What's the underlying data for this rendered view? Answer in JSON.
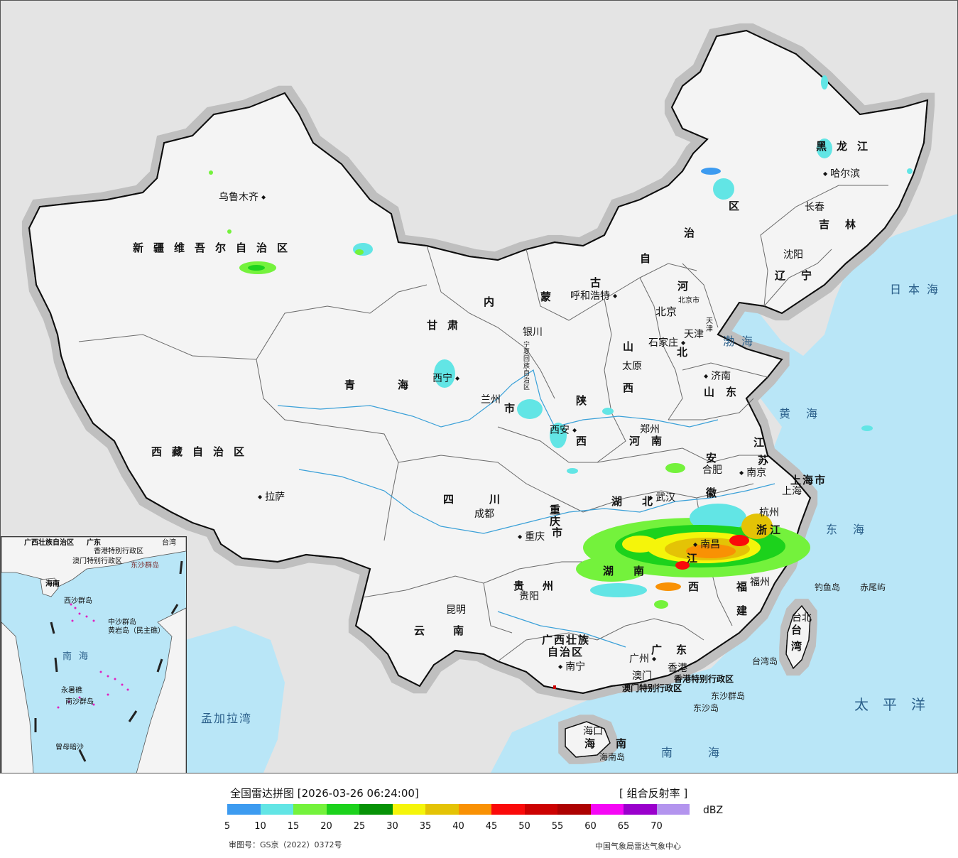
{
  "colors": {
    "background": "#e4e4e4",
    "sea": "#b9e6f7",
    "land": "#f4f4f4",
    "border": "#111111"
  },
  "legend": {
    "title": "全国雷达拼图 [2026-03-26 06:24:00]",
    "product": "[ 组合反射率 ]",
    "unit": "dBZ",
    "ticks": [
      "5",
      "10",
      "15",
      "20",
      "25",
      "30",
      "35",
      "40",
      "45",
      "50",
      "55",
      "60",
      "65",
      "70"
    ],
    "colors": [
      "#3d9bf0",
      "#62e5e5",
      "#74f23c",
      "#1cd21c",
      "#079207",
      "#f5f50a",
      "#e4c306",
      "#f99104",
      "#fa0a0a",
      "#cc0101",
      "#ad0101",
      "#f507f5",
      "#9a00cc",
      "#b394ee"
    ],
    "review_number": "审图号：GS京（2022）0372号",
    "agency": "中国气象局雷达气象中心"
  },
  "map": {
    "provinces": [
      {
        "id": "xinjiang",
        "name": "新疆维吾尔自治区"
      },
      {
        "id": "xizang",
        "name": "西藏自治区"
      },
      {
        "id": "qinghai",
        "name": "青海"
      },
      {
        "id": "gansu",
        "name": "甘肃"
      },
      {
        "id": "neimenggu-1",
        "name": "内"
      },
      {
        "id": "neimenggu-2",
        "name": "蒙"
      },
      {
        "id": "neimenggu-3",
        "name": "古"
      },
      {
        "id": "neimenggu-4",
        "name": "自"
      },
      {
        "id": "neimenggu-5",
        "name": "治"
      },
      {
        "id": "neimenggu-6",
        "name": "区"
      },
      {
        "id": "heilongjiang",
        "name": "黑龙江"
      },
      {
        "id": "jilin",
        "name": "吉林"
      },
      {
        "id": "liaoning",
        "name": "辽宁"
      },
      {
        "id": "hebei-1",
        "name": "河"
      },
      {
        "id": "hebei-2",
        "name": "北"
      },
      {
        "id": "shanxi-1",
        "name": "山"
      },
      {
        "id": "shanxi-2",
        "name": "西"
      },
      {
        "id": "shandong",
        "name": "山东"
      },
      {
        "id": "henan",
        "name": "河南"
      },
      {
        "id": "shaanxi-1",
        "name": "陕"
      },
      {
        "id": "shaanxi-2",
        "name": "西"
      },
      {
        "id": "sichuan",
        "name": "四川"
      },
      {
        "id": "chongqing-1",
        "name": "重"
      },
      {
        "id": "chongqing-2",
        "name": "庆"
      },
      {
        "id": "chongqing-3",
        "name": "市"
      },
      {
        "id": "hubei",
        "name": "湖北"
      },
      {
        "id": "hunan",
        "name": "湖南"
      },
      {
        "id": "anhui-1",
        "name": "安"
      },
      {
        "id": "anhui-2",
        "name": "徽"
      },
      {
        "id": "jiangsu-1",
        "name": "江"
      },
      {
        "id": "jiangsu-2",
        "name": "苏"
      },
      {
        "id": "shanghai",
        "name": "上海市"
      },
      {
        "id": "zhejiang",
        "name": "浙江"
      },
      {
        "id": "jiangxi-1",
        "name": "江"
      },
      {
        "id": "jiangxi-2",
        "name": "西"
      },
      {
        "id": "fujian-1",
        "name": "福"
      },
      {
        "id": "fujian-2",
        "name": "建"
      },
      {
        "id": "guizhou",
        "name": "贵州"
      },
      {
        "id": "yunnan",
        "name": "云南"
      },
      {
        "id": "guangxi-1",
        "name": "广西壮族"
      },
      {
        "id": "guangxi-2",
        "name": "自治区"
      },
      {
        "id": "guangdong",
        "name": "广东"
      },
      {
        "id": "hainan-1",
        "name": "海"
      },
      {
        "id": "hainan-2",
        "name": "南"
      },
      {
        "id": "taiwan-1",
        "name": "台"
      },
      {
        "id": "taiwan-2",
        "name": "湾"
      },
      {
        "id": "ningxia",
        "name": "宁夏回族自治区"
      },
      {
        "id": "tianjin",
        "name": "天津"
      },
      {
        "id": "beijing-city",
        "name": "北京市"
      },
      {
        "id": "gansu-city",
        "name": "市"
      },
      {
        "id": "hk-sar",
        "name": "香港特别行政区"
      },
      {
        "id": "macau-sar",
        "name": "澳门特别行政区"
      }
    ],
    "cities": [
      {
        "id": "urumqi",
        "name": "乌鲁木齐"
      },
      {
        "id": "lhasa",
        "name": "拉萨"
      },
      {
        "id": "xining",
        "name": "西宁"
      },
      {
        "id": "lanzhou",
        "name": "兰州"
      },
      {
        "id": "yinchuan",
        "name": "银川"
      },
      {
        "id": "hohhot",
        "name": "呼和浩特"
      },
      {
        "id": "beijing",
        "name": "北京"
      },
      {
        "id": "tianjin-city",
        "name": "天津"
      },
      {
        "id": "shijiazhuang",
        "name": "石家庄"
      },
      {
        "id": "taiyuan",
        "name": "太原"
      },
      {
        "id": "jinan",
        "name": "济南"
      },
      {
        "id": "zhengzhou",
        "name": "郑州"
      },
      {
        "id": "xian",
        "name": "西安"
      },
      {
        "id": "chengdu",
        "name": "成都"
      },
      {
        "id": "chongqing",
        "name": "重庆"
      },
      {
        "id": "wuhan",
        "name": "武汉"
      },
      {
        "id": "hefei",
        "name": "合肥"
      },
      {
        "id": "nanjing",
        "name": "南京"
      },
      {
        "id": "shanghai-city",
        "name": "上海"
      },
      {
        "id": "hangzhou",
        "name": "杭州"
      },
      {
        "id": "nanchang",
        "name": "南昌"
      },
      {
        "id": "fuzhou",
        "name": "福州"
      },
      {
        "id": "guiyang",
        "name": "贵阳"
      },
      {
        "id": "kunming",
        "name": "昆明"
      },
      {
        "id": "nanning",
        "name": "南宁"
      },
      {
        "id": "guangzhou",
        "name": "广州"
      },
      {
        "id": "macau",
        "name": "澳门"
      },
      {
        "id": "hongkong",
        "name": "香港"
      },
      {
        "id": "haikou",
        "name": "海口"
      },
      {
        "id": "taibei",
        "name": "台北"
      },
      {
        "id": "shenyang",
        "name": "沈阳"
      },
      {
        "id": "changchun",
        "name": "长春"
      },
      {
        "id": "harbin",
        "name": "哈尔滨"
      }
    ],
    "seas": [
      {
        "id": "japan-sea",
        "name": "日本海"
      },
      {
        "id": "bohai",
        "name": "渤海"
      },
      {
        "id": "yellow-sea",
        "name": "黄海"
      },
      {
        "id": "east-sea",
        "name": "东海"
      },
      {
        "id": "pacific",
        "name": "太平洋"
      },
      {
        "id": "south-sea",
        "name": "南海"
      },
      {
        "id": "bengal",
        "name": "孟加拉湾"
      }
    ],
    "islands": [
      {
        "id": "diaoyu",
        "name": "钓鱼岛"
      },
      {
        "id": "chiwei",
        "name": "赤尾屿"
      },
      {
        "id": "taiwan-island",
        "name": "台湾岛"
      },
      {
        "id": "dongsha-islands",
        "name": "东沙群岛"
      },
      {
        "id": "dongsha-island",
        "name": "东沙岛"
      },
      {
        "id": "hainan-island",
        "name": "海南岛"
      }
    ]
  },
  "inset": {
    "labels": [
      {
        "id": "guangxi",
        "name": "广西壮族自治区"
      },
      {
        "id": "guangdong",
        "name": "广东"
      },
      {
        "id": "hk",
        "name": "香港特别行政区"
      },
      {
        "id": "macau",
        "name": "澳门特别行政区"
      },
      {
        "id": "taiwan",
        "name": "台湾"
      },
      {
        "id": "dongsha",
        "name": "东沙群岛"
      },
      {
        "id": "hainan",
        "name": "海南"
      },
      {
        "id": "xisha",
        "name": "西沙群岛"
      },
      {
        "id": "zhongsha",
        "name": "中沙群岛"
      },
      {
        "id": "huangyan",
        "name": "黄岩岛（民主礁）"
      },
      {
        "id": "south-sea",
        "name": "南海"
      },
      {
        "id": "nansha",
        "name": "南沙群岛"
      },
      {
        "id": "yongshu",
        "name": "永暑礁"
      },
      {
        "id": "zengmu",
        "name": "曾母暗沙"
      }
    ]
  }
}
